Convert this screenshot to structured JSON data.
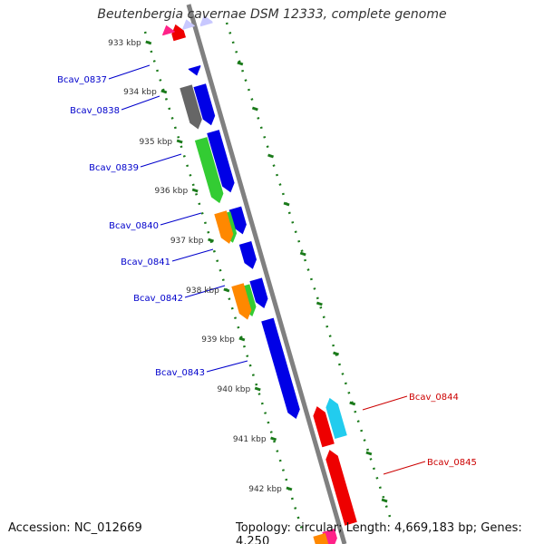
{
  "title": "Beutenbergia cavernae DSM 12333, complete genome",
  "footer": {
    "accession": "Accession: NC_012669",
    "topology": "Topology: circular; Length: 4,669,183 bp; Genes: 4,250"
  },
  "colors": {
    "backbone": "#808080",
    "tick": "#1a7a1a",
    "forward_label": "#0000cc",
    "reverse_label": "#cc0000",
    "blue": "#0000e6",
    "green": "#33cc33",
    "orange": "#ff8800",
    "gray": "#666666",
    "red": "#ee0000",
    "cyan": "#22ccee",
    "pink": "#ff2288"
  },
  "scale_labels": [
    "933 kbp",
    "934 kbp",
    "935 kbp",
    "936 kbp",
    "937 kbp",
    "938 kbp",
    "939 kbp",
    "940 kbp",
    "941 kbp",
    "942 kbp"
  ],
  "gene_labels": {
    "forward": [
      "Bcav_0837",
      "Bcav_0838",
      "Bcav_0839",
      "Bcav_0840",
      "Bcav_0841",
      "Bcav_0842",
      "Bcav_0843"
    ],
    "reverse": [
      "Bcav_0844",
      "Bcav_0845"
    ]
  }
}
